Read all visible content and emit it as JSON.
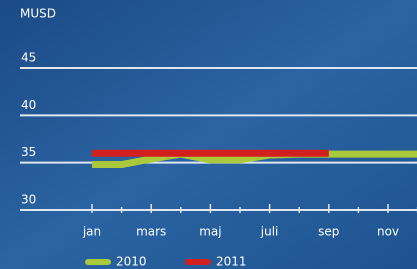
{
  "chart_data": {
    "type": "line",
    "y_label": "MUSD",
    "categories": [
      "jan",
      null,
      "mars",
      null,
      "maj",
      null,
      "juli",
      null,
      "sep",
      null,
      "nov",
      null
    ],
    "series": [
      {
        "name": "2010",
        "color": "#a9c83b",
        "values": [
          34.8,
          34.8,
          35.4,
          35.9,
          35.3,
          35.3,
          35.8,
          35.9,
          35.9,
          35.9,
          35.9,
          35.9
        ]
      },
      {
        "name": "2011",
        "color": "#d2201f",
        "values": [
          36,
          36,
          36,
          36,
          36,
          36,
          36,
          36,
          36,
          null,
          null,
          null
        ]
      }
    ],
    "ylim": [
      30,
      45
    ],
    "yticks": [
      30,
      35,
      40,
      45
    ],
    "grid": true
  }
}
